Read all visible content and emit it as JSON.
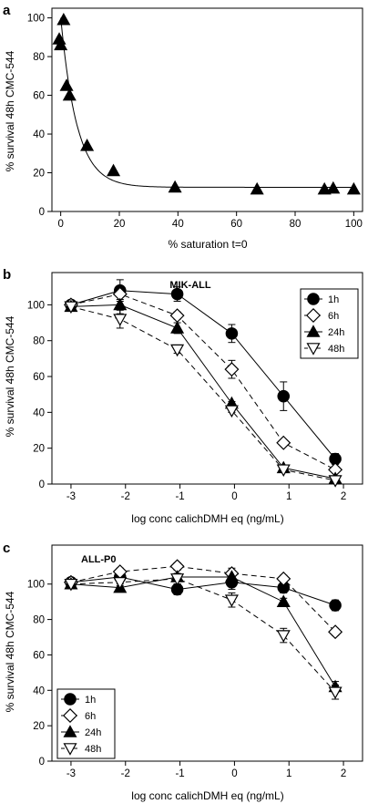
{
  "chart_data": [
    {
      "panel": "a",
      "type": "scatter",
      "title": "",
      "xlabel": "% saturation t=0",
      "ylabel": "% survival 48h CMC-544",
      "xlim": [
        -3,
        103
      ],
      "ylim": [
        0,
        105
      ],
      "xticks": [
        0,
        20,
        40,
        60,
        80,
        100
      ],
      "yticks": [
        0,
        20,
        40,
        60,
        80,
        100
      ],
      "marker": "triangle-up",
      "marker_color": "#000000",
      "grid": false,
      "legend": "none",
      "series": [
        {
          "x": [
            -0.5,
            0,
            1,
            2,
            3,
            9,
            18,
            39,
            67,
            90,
            93,
            100
          ],
          "y": [
            89,
            86,
            99,
            65,
            60,
            34,
            21,
            12.5,
            11.5,
            11.5,
            12,
            11.5
          ]
        }
      ],
      "fit_curve": {
        "form": "exponential decay",
        "plateau": 12.5,
        "start": 100,
        "rate": 0.18
      }
    },
    {
      "panel": "b",
      "type": "line",
      "title": "MIK-ALL",
      "xlabel": "log conc calichDMH eq (ng/mL)",
      "ylabel": "% survival 48h CMC-544",
      "xlim": [
        -3.35,
        2.35
      ],
      "ylim": [
        0,
        118
      ],
      "xticks": [
        -3,
        -2,
        -1,
        0,
        1,
        2
      ],
      "yticks": [
        0,
        20,
        40,
        60,
        80,
        100
      ],
      "grid": false,
      "legend": "top-right",
      "series": [
        {
          "name": "1h",
          "marker": "circle",
          "fill": "#000000",
          "dash": "solid",
          "x": [
            -3,
            -2.1,
            -1.05,
            -0.05,
            0.9,
            1.85
          ],
          "y": [
            100,
            108,
            106,
            84,
            49,
            14
          ],
          "err": [
            2,
            6,
            4,
            5,
            8,
            3
          ]
        },
        {
          "name": "6h",
          "marker": "diamond",
          "fill": "#ffffff",
          "dash": "dashed",
          "x": [
            -3,
            -2.1,
            -1.05,
            -0.05,
            0.9,
            1.85
          ],
          "y": [
            100,
            106,
            94,
            64,
            23,
            8
          ],
          "err": [
            1,
            3,
            2,
            5,
            1,
            1.5
          ]
        },
        {
          "name": "24h",
          "marker": "triangle-up",
          "fill": "#000000",
          "dash": "solid",
          "x": [
            -3,
            -2.1,
            -1.05,
            -0.05,
            0.9,
            1.85
          ],
          "y": [
            99,
            100,
            87,
            45,
            9,
            3
          ],
          "err": [
            1,
            5,
            3,
            1,
            1,
            1
          ]
        },
        {
          "name": "48h",
          "marker": "triangle-down",
          "fill": "#ffffff",
          "dash": "dashed",
          "x": [
            -3,
            -2.1,
            -1.05,
            -0.05,
            0.9,
            1.85
          ],
          "y": [
            99,
            92,
            75,
            41,
            8,
            2
          ],
          "err": [
            1,
            5,
            2,
            1,
            1,
            1
          ]
        }
      ]
    },
    {
      "panel": "c",
      "type": "line",
      "title": "ALL-P0",
      "xlabel": "log conc calichDMH eq (ng/mL)",
      "ylabel": "% survival 48h CMC-544",
      "xlim": [
        -3.35,
        2.35
      ],
      "ylim": [
        0,
        122
      ],
      "xticks": [
        -3,
        -2,
        -1,
        0,
        1,
        2
      ],
      "yticks": [
        0,
        20,
        40,
        60,
        80,
        100
      ],
      "grid": false,
      "legend": "bottom-left",
      "series": [
        {
          "name": "1h",
          "marker": "circle",
          "fill": "#000000",
          "dash": "solid",
          "x": [
            -3,
            -2.1,
            -1.05,
            -0.05,
            0.9,
            1.85
          ],
          "y": [
            101,
            104,
            97,
            101,
            98,
            88
          ],
          "err": [
            2,
            3,
            3,
            4,
            3,
            3
          ]
        },
        {
          "name": "6h",
          "marker": "diamond",
          "fill": "#ffffff",
          "dash": "dashed",
          "x": [
            -3,
            -2.1,
            -1.05,
            -0.05,
            0.9,
            1.85
          ],
          "y": [
            101,
            107,
            110,
            106,
            103,
            73
          ],
          "err": [
            1,
            2,
            2,
            2,
            2,
            2
          ]
        },
        {
          "name": "24h",
          "marker": "triangle-up",
          "fill": "#000000",
          "dash": "solid",
          "x": [
            -3,
            -2.1,
            -1.05,
            -0.05,
            0.9,
            1.85
          ],
          "y": [
            100,
            98,
            104,
            104,
            90,
            42
          ],
          "err": [
            1,
            2,
            4,
            5,
            2,
            3
          ]
        },
        {
          "name": "48h",
          "marker": "triangle-down",
          "fill": "#ffffff",
          "dash": "dashed",
          "x": [
            -3,
            -2.1,
            -1.05,
            -0.05,
            0.9,
            1.85
          ],
          "y": [
            100,
            101,
            103,
            91,
            71,
            39
          ],
          "err": [
            1,
            2,
            3,
            4,
            4,
            4
          ]
        }
      ]
    }
  ]
}
